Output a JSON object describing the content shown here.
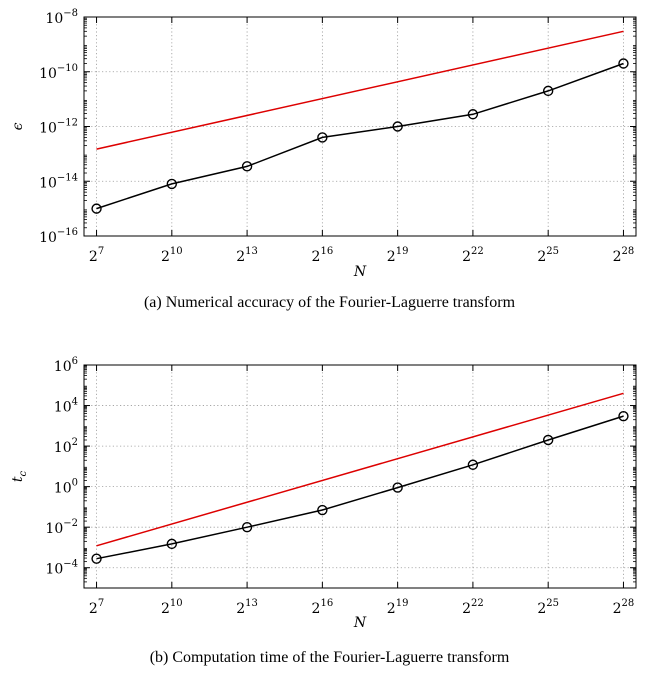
{
  "chart_data": [
    {
      "type": "line",
      "caption": "(a) Numerical accuracy of the Fourier-Laguerre transform",
      "xlabel": "N",
      "ylabel": "ϵ",
      "x_scale": "log2",
      "y_scale": "log10",
      "x_base": "2",
      "x_tick_exponents": [
        "7",
        "10",
        "13",
        "16",
        "19",
        "22",
        "25",
        "28"
      ],
      "y_base": "10",
      "y_tick_exponents": [
        "−16",
        "−14",
        "−12",
        "−10",
        "−8"
      ],
      "x": [
        128,
        1024,
        8192,
        65536,
        524288,
        4194304,
        33554432,
        268435456
      ],
      "ylim": [
        1e-16,
        1e-08
      ],
      "grid": true,
      "series": [
        {
          "color": "#000000",
          "marker": "circle",
          "values": [
            1e-15,
            8e-15,
            3.5e-14,
            4e-13,
            1e-12,
            2.8e-12,
            2e-11,
            2e-10
          ]
        },
        {
          "color": "#dd0000",
          "marker": "none",
          "x": [
            128,
            268435456
          ],
          "values": [
            1.5e-13,
            3e-09
          ]
        }
      ]
    },
    {
      "type": "line",
      "caption": "(b) Computation time of the Fourier-Laguerre transform",
      "xlabel": "N",
      "ylabel": "t",
      "ylabel_sub": "c",
      "x_scale": "log2",
      "y_scale": "log10",
      "x_base": "2",
      "x_tick_exponents": [
        "7",
        "10",
        "13",
        "16",
        "19",
        "22",
        "25",
        "28"
      ],
      "y_base": "10",
      "y_tick_exponents": [
        "−4",
        "−2",
        "0",
        "2",
        "4",
        "6"
      ],
      "x": [
        128,
        1024,
        8192,
        65536,
        524288,
        4194304,
        33554432,
        268435456
      ],
      "ylim": [
        1e-05,
        1000000.0
      ],
      "grid": true,
      "series": [
        {
          "color": "#000000",
          "marker": "circle",
          "values": [
            0.00028,
            0.0015,
            0.01,
            0.07,
            0.9,
            12,
            200,
            3000
          ]
        },
        {
          "color": "#dd0000",
          "marker": "none",
          "x": [
            128,
            268435456
          ],
          "values": [
            0.0012,
            40000
          ]
        }
      ]
    }
  ]
}
